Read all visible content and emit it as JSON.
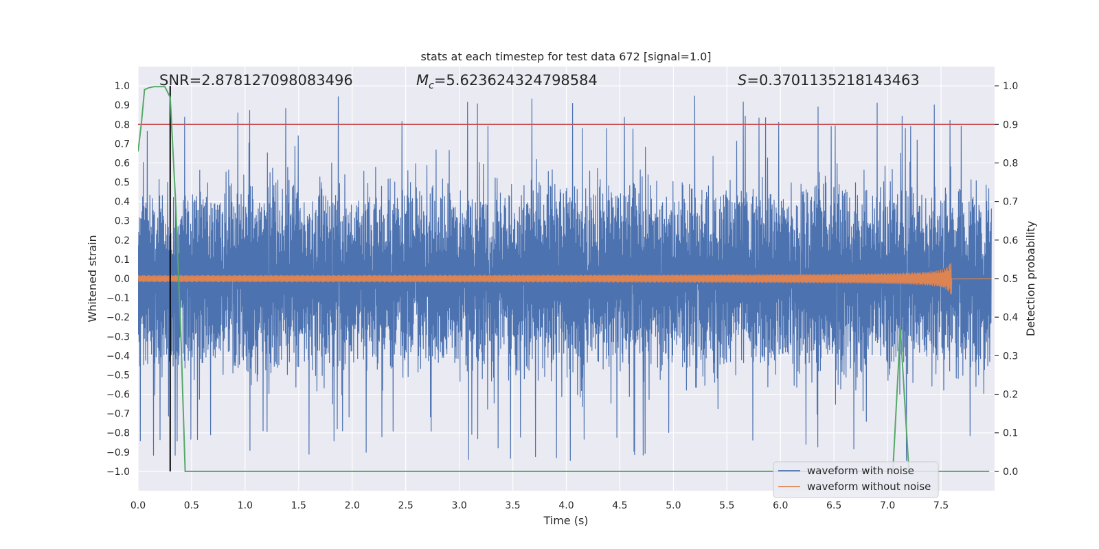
{
  "chart_data": {
    "type": "line",
    "title": "stats at each timestep for test data 672 [signal=1.0]",
    "xlabel": "Time (s)",
    "ylabel_left": "Whitened strain",
    "ylabel_right": "Detection probability",
    "xlim": [
      0.0,
      8.0
    ],
    "ylim_left": [
      -1.1,
      1.1
    ],
    "ylim_right": [
      -0.05,
      1.05
    ],
    "x_ticks": [
      "0.0",
      "0.5",
      "1.0",
      "1.5",
      "2.0",
      "2.5",
      "3.0",
      "3.5",
      "4.0",
      "4.5",
      "5.0",
      "5.5",
      "6.0",
      "6.5",
      "7.0",
      "7.5"
    ],
    "y_left_ticks": [
      "1.0",
      "0.9",
      "0.8",
      "0.7",
      "0.6",
      "0.5",
      "0.4",
      "0.3",
      "0.2",
      "0.1",
      "0.0",
      "−0.1",
      "−0.2",
      "−0.3",
      "−0.4",
      "−0.5",
      "−0.6",
      "−0.7",
      "−0.8",
      "−0.9",
      "−1.0"
    ],
    "y_right_ticks": [
      "1.0",
      "0.9",
      "0.8",
      "0.7",
      "0.6",
      "0.5",
      "0.4",
      "0.3",
      "0.2",
      "0.1",
      "0.0"
    ],
    "annotations": {
      "snr": "SNR=2.878127098083496",
      "mc_symbol": "M",
      "mc_subscript": "c",
      "mc_value": "=5.623624324798584",
      "s_symbol": "S",
      "s_value": "=0.3701135218143463"
    },
    "threshold_line": {
      "y_right": 0.9,
      "color": "#c44e52"
    },
    "event_marker": {
      "x": 0.3,
      "color": "#000000"
    },
    "series": [
      {
        "name": "waveform with noise",
        "color": "#4c72b0",
        "axis": "left",
        "description": "whitened noisy strain, dense oscillation approx within [-0.6, 0.6] with spikes up to about +/-1.0",
        "envelope_typical": 0.45,
        "envelope_spike": 0.95
      },
      {
        "name": "waveform without noise",
        "color": "#dd8452",
        "axis": "left",
        "description": "chirp signal, small amplitude growing until merger near t=7.6 s",
        "merger_time": 7.6,
        "initial_amplitude": 0.012,
        "peak_amplitude": 0.08
      },
      {
        "name": "detection probability",
        "color": "#55a868",
        "axis": "right",
        "x": [
          0.0,
          0.03,
          0.06,
          0.1,
          0.15,
          0.2,
          0.25,
          0.3,
          0.35,
          0.4,
          0.44,
          0.5,
          1.0,
          2.0,
          3.0,
          4.0,
          5.0,
          6.0,
          7.0,
          7.05,
          7.12,
          7.2,
          7.3,
          7.5,
          7.95
        ],
        "y": [
          0.83,
          0.9,
          0.99,
          0.995,
          0.998,
          0.998,
          0.998,
          0.97,
          0.7,
          0.35,
          0.0,
          0.0,
          0.0,
          0.0,
          0.0,
          0.0,
          0.0,
          0.0,
          0.0,
          0.0,
          0.37,
          0.0,
          0.0,
          0.0,
          0.0
        ]
      }
    ],
    "legend": {
      "placement": "lower-right",
      "entries": [
        {
          "label": "waveform with noise",
          "color": "#4c72b0"
        },
        {
          "label": "waveform without noise",
          "color": "#dd8452"
        }
      ]
    }
  }
}
